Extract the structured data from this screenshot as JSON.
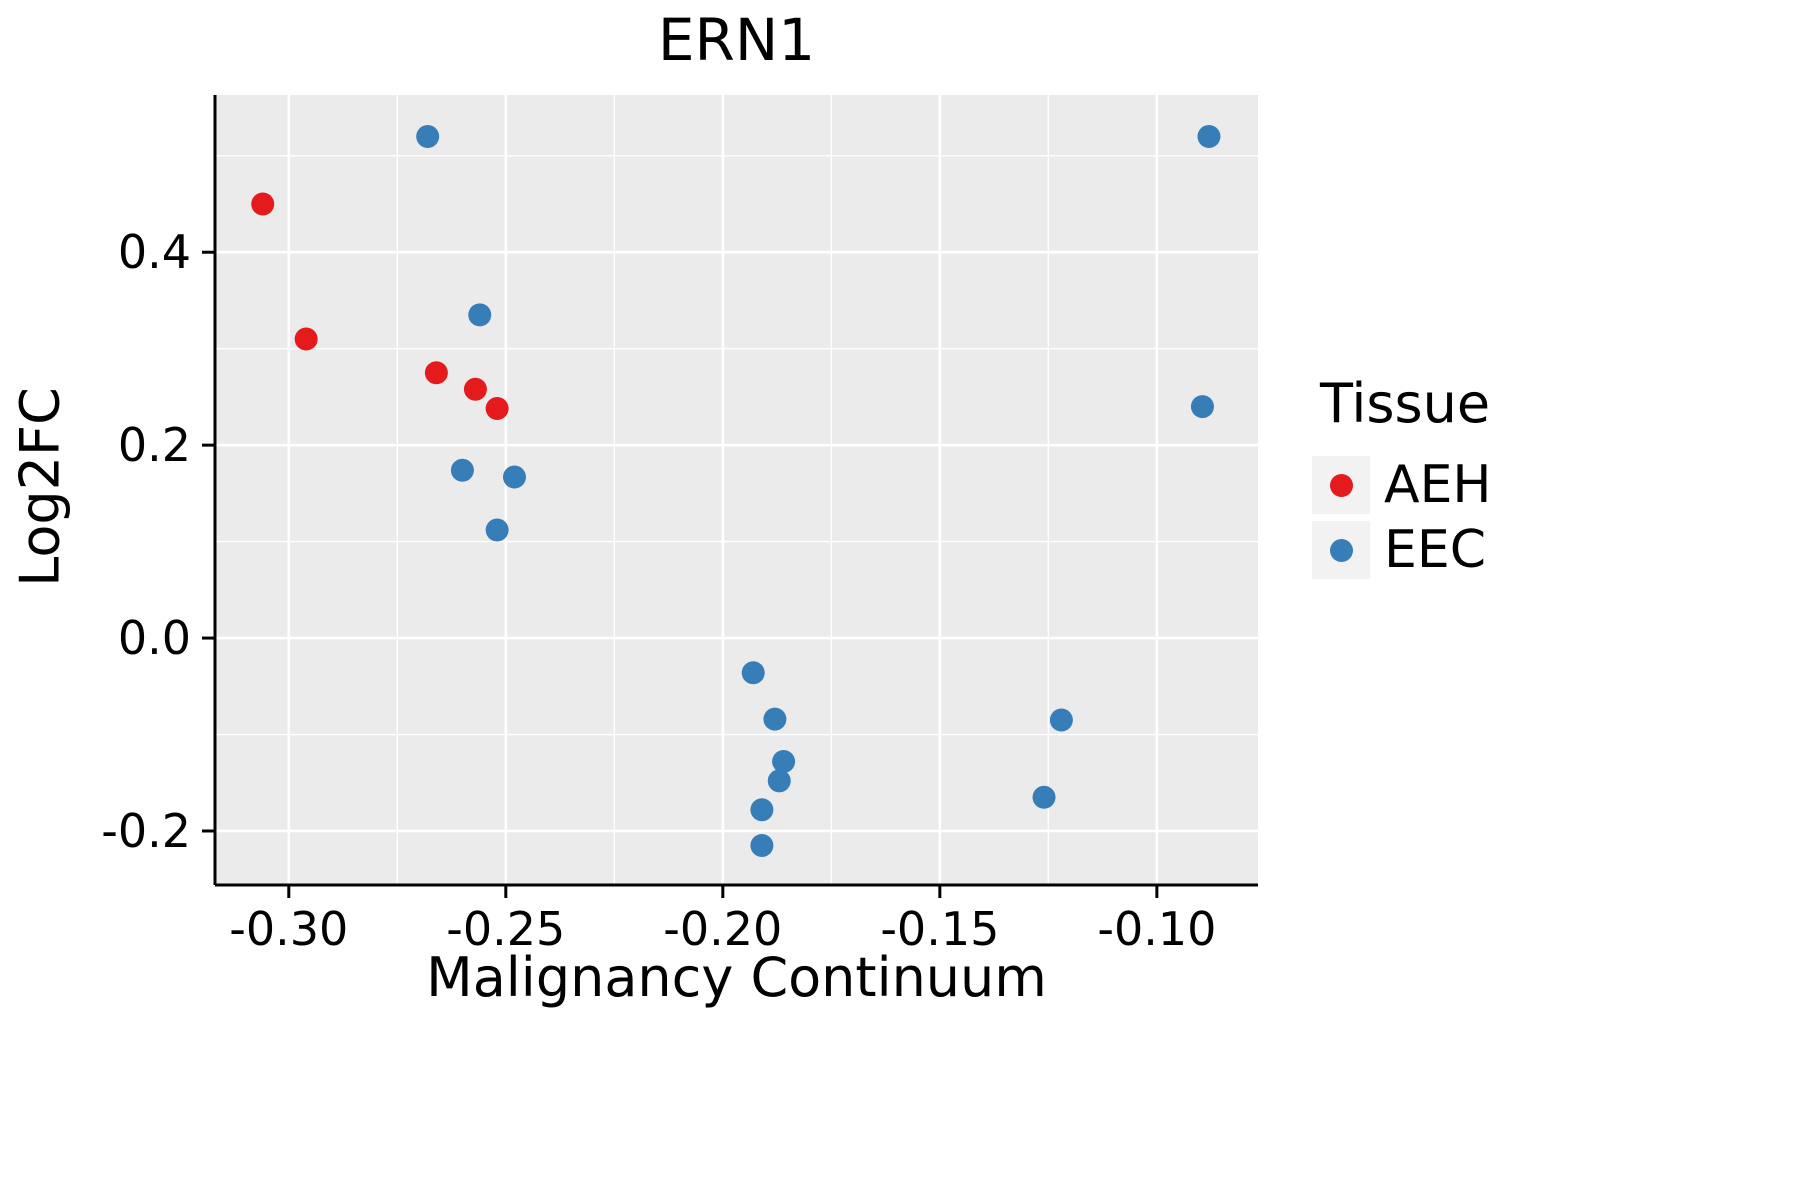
{
  "chart_data": {
    "type": "scatter",
    "title": "ERN1",
    "xlabel": "Malignancy Continuum",
    "ylabel": "Log2FC",
    "xlim": [
      -0.317,
      -0.0767
    ],
    "ylim": [
      -0.256,
      0.563
    ],
    "x_ticks": [
      -0.3,
      -0.25,
      -0.2,
      -0.15,
      -0.1
    ],
    "x_tick_labels": [
      "-0.30",
      "-0.25",
      "-0.20",
      "-0.15",
      "-0.10"
    ],
    "x_minor_ticks": [
      -0.275,
      -0.225,
      -0.175,
      -0.125
    ],
    "y_ticks": [
      -0.2,
      0.0,
      0.2,
      0.4
    ],
    "y_tick_labels": [
      "-0.2",
      "0.0",
      "0.2",
      "0.4"
    ],
    "y_minor_ticks": [
      -0.1,
      0.1,
      0.3,
      0.5
    ],
    "legend_title": "Tissue",
    "legend_position": "right",
    "panel_background": "#EBEBEB",
    "grid_color": "#FFFFFF",
    "axis_color": "#000000",
    "series": [
      {
        "name": "AEH",
        "color": "#E41A1C",
        "points": [
          [
            -0.306,
            0.45
          ],
          [
            -0.296,
            0.31
          ],
          [
            -0.266,
            0.275
          ],
          [
            -0.257,
            0.258
          ],
          [
            -0.252,
            0.238
          ]
        ]
      },
      {
        "name": "EEC",
        "color": "#377EB8",
        "points": [
          [
            -0.268,
            0.52
          ],
          [
            -0.256,
            0.335
          ],
          [
            -0.26,
            0.174
          ],
          [
            -0.248,
            0.167
          ],
          [
            -0.252,
            0.112
          ],
          [
            -0.193,
            -0.036
          ],
          [
            -0.188,
            -0.084
          ],
          [
            -0.186,
            -0.128
          ],
          [
            -0.187,
            -0.148
          ],
          [
            -0.191,
            -0.178
          ],
          [
            -0.191,
            -0.215
          ],
          [
            -0.122,
            -0.085
          ],
          [
            -0.126,
            -0.165
          ],
          [
            -0.088,
            0.52
          ],
          [
            -0.0895,
            0.24
          ]
        ]
      }
    ]
  }
}
